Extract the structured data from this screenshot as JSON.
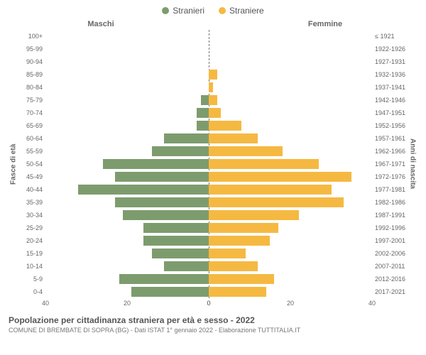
{
  "legend": {
    "male": {
      "label": "Stranieri",
      "color": "#7d9c6e"
    },
    "female": {
      "label": "Straniere",
      "color": "#f5b942"
    }
  },
  "header": {
    "male": "Maschi",
    "female": "Femmine"
  },
  "yaxis": {
    "left_title": "Fasce di età",
    "right_title": "Anni di nascita"
  },
  "xaxis": {
    "max": 40,
    "ticks_left": [
      40,
      20,
      0
    ],
    "ticks_right": [
      0,
      20,
      40
    ]
  },
  "chart": {
    "type": "population-pyramid",
    "bar_color_male": "#7d9c6e",
    "bar_color_female": "#f5b942",
    "background_color": "#ffffff",
    "divider_color": "#777777",
    "rows": [
      {
        "age": "100+",
        "year": "≤ 1921",
        "m": 0,
        "f": 0
      },
      {
        "age": "95-99",
        "year": "1922-1926",
        "m": 0,
        "f": 0
      },
      {
        "age": "90-94",
        "year": "1927-1931",
        "m": 0,
        "f": 0
      },
      {
        "age": "85-89",
        "year": "1932-1936",
        "m": 0,
        "f": 2
      },
      {
        "age": "80-84",
        "year": "1937-1941",
        "m": 0,
        "f": 1
      },
      {
        "age": "75-79",
        "year": "1942-1946",
        "m": 2,
        "f": 2
      },
      {
        "age": "70-74",
        "year": "1947-1951",
        "m": 3,
        "f": 3
      },
      {
        "age": "65-69",
        "year": "1952-1956",
        "m": 3,
        "f": 8
      },
      {
        "age": "60-64",
        "year": "1957-1961",
        "m": 11,
        "f": 12
      },
      {
        "age": "55-59",
        "year": "1962-1966",
        "m": 14,
        "f": 18
      },
      {
        "age": "50-54",
        "year": "1967-1971",
        "m": 26,
        "f": 27
      },
      {
        "age": "45-49",
        "year": "1972-1976",
        "m": 23,
        "f": 35
      },
      {
        "age": "40-44",
        "year": "1977-1981",
        "m": 32,
        "f": 30
      },
      {
        "age": "35-39",
        "year": "1982-1986",
        "m": 23,
        "f": 33
      },
      {
        "age": "30-34",
        "year": "1987-1991",
        "m": 21,
        "f": 22
      },
      {
        "age": "25-29",
        "year": "1992-1996",
        "m": 16,
        "f": 17
      },
      {
        "age": "20-24",
        "year": "1997-2001",
        "m": 16,
        "f": 15
      },
      {
        "age": "15-19",
        "year": "2002-2006",
        "m": 14,
        "f": 9
      },
      {
        "age": "10-14",
        "year": "2007-2011",
        "m": 11,
        "f": 12
      },
      {
        "age": "5-9",
        "year": "2012-2016",
        "m": 22,
        "f": 16
      },
      {
        "age": "0-4",
        "year": "2017-2021",
        "m": 19,
        "f": 14
      }
    ]
  },
  "footer": {
    "title": "Popolazione per cittadinanza straniera per età e sesso - 2022",
    "source": "COMUNE DI BREMBATE DI SOPRA (BG) - Dati ISTAT 1° gennaio 2022 - Elaborazione TUTTITALIA.IT"
  }
}
